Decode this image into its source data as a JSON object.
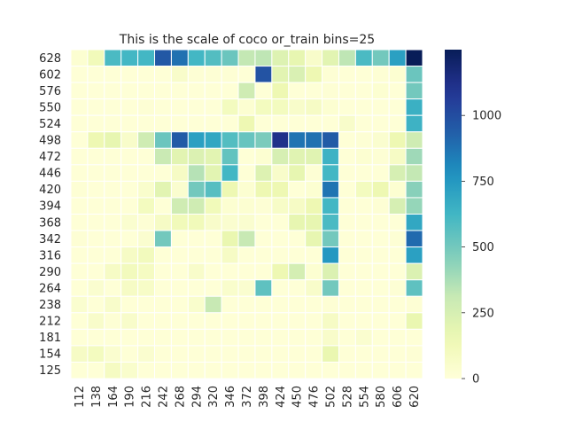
{
  "chart_data": {
    "type": "heatmap",
    "title": "This is the scale of coco or_train bins=25",
    "xlabel": "",
    "ylabel": "",
    "x": [
      "112",
      "138",
      "164",
      "190",
      "216",
      "242",
      "268",
      "294",
      "320",
      "346",
      "372",
      "398",
      "424",
      "450",
      "476",
      "502",
      "528",
      "554",
      "580",
      "606",
      "620"
    ],
    "y": [
      "628",
      "602",
      "576",
      "550",
      "524",
      "498",
      "472",
      "446",
      "420",
      "394",
      "368",
      "342",
      "316",
      "290",
      "264",
      "238",
      "212",
      "181",
      "154",
      "125"
    ],
    "values": [
      [
        30,
        120,
        600,
        620,
        620,
        960,
        880,
        620,
        580,
        520,
        320,
        330,
        220,
        180,
        60,
        200,
        330,
        600,
        500,
        720,
        1250
      ],
      [
        10,
        10,
        10,
        10,
        10,
        10,
        60,
        20,
        20,
        20,
        10,
        980,
        200,
        240,
        150,
        20,
        10,
        10,
        20,
        30,
        520
      ],
      [
        10,
        10,
        10,
        10,
        10,
        10,
        10,
        10,
        10,
        10,
        280,
        10,
        150,
        10,
        10,
        20,
        10,
        10,
        30,
        10,
        500
      ],
      [
        10,
        10,
        10,
        10,
        20,
        10,
        10,
        10,
        10,
        100,
        30,
        100,
        100,
        60,
        80,
        30,
        10,
        10,
        10,
        10,
        650
      ],
      [
        10,
        10,
        10,
        10,
        10,
        10,
        10,
        10,
        10,
        10,
        150,
        10,
        10,
        10,
        10,
        10,
        60,
        10,
        10,
        10,
        640
      ],
      [
        10,
        150,
        180,
        60,
        280,
        520,
        950,
        720,
        690,
        580,
        530,
        480,
        1120,
        870,
        880,
        950,
        10,
        20,
        40,
        150,
        280
      ],
      [
        10,
        10,
        10,
        10,
        10,
        300,
        200,
        230,
        200,
        540,
        10,
        30,
        250,
        210,
        210,
        640,
        10,
        30,
        20,
        80,
        400
      ],
      [
        10,
        10,
        10,
        10,
        10,
        10,
        80,
        350,
        200,
        620,
        10,
        220,
        60,
        180,
        20,
        620,
        10,
        10,
        10,
        250,
        320
      ],
      [
        20,
        10,
        10,
        10,
        50,
        200,
        40,
        500,
        570,
        150,
        30,
        150,
        150,
        10,
        30,
        870,
        10,
        100,
        150,
        30,
        450
      ],
      [
        10,
        10,
        10,
        10,
        100,
        10,
        280,
        280,
        120,
        30,
        30,
        20,
        70,
        80,
        150,
        620,
        10,
        10,
        20,
        250,
        420
      ],
      [
        10,
        10,
        10,
        40,
        20,
        80,
        120,
        120,
        60,
        40,
        40,
        10,
        10,
        180,
        180,
        600,
        10,
        10,
        10,
        10,
        690
      ],
      [
        20,
        10,
        10,
        10,
        40,
        500,
        10,
        10,
        10,
        170,
        310,
        10,
        10,
        10,
        180,
        500,
        10,
        10,
        10,
        20,
        900
      ],
      [
        10,
        10,
        10,
        80,
        110,
        10,
        10,
        10,
        10,
        80,
        10,
        10,
        10,
        10,
        10,
        750,
        10,
        10,
        10,
        10,
        720
      ],
      [
        10,
        10,
        80,
        110,
        90,
        10,
        10,
        60,
        10,
        10,
        10,
        10,
        150,
        260,
        30,
        230,
        10,
        10,
        10,
        10,
        230
      ],
      [
        10,
        40,
        10,
        80,
        70,
        10,
        10,
        10,
        10,
        50,
        40,
        550,
        10,
        10,
        60,
        500,
        10,
        10,
        10,
        20,
        550
      ],
      [
        40,
        10,
        60,
        10,
        10,
        10,
        10,
        50,
        310,
        10,
        10,
        10,
        10,
        10,
        10,
        20,
        10,
        10,
        10,
        10,
        20
      ],
      [
        10,
        60,
        20,
        60,
        10,
        10,
        10,
        10,
        10,
        10,
        10,
        10,
        10,
        10,
        10,
        80,
        10,
        10,
        10,
        10,
        170
      ],
      [
        10,
        10,
        10,
        10,
        10,
        10,
        10,
        10,
        10,
        10,
        10,
        10,
        10,
        10,
        10,
        60,
        10,
        40,
        10,
        10,
        10
      ],
      [
        80,
        100,
        40,
        10,
        40,
        10,
        10,
        10,
        10,
        10,
        10,
        10,
        10,
        10,
        10,
        170,
        10,
        10,
        10,
        10,
        20
      ],
      [
        10,
        10,
        90,
        50,
        10,
        10,
        10,
        10,
        10,
        10,
        10,
        10,
        10,
        10,
        10,
        10,
        10,
        10,
        10,
        10,
        10
      ]
    ],
    "vmin": 0,
    "vmax": 1250,
    "colormap": "YlGnBu",
    "colorbar_ticks": [
      0,
      250,
      500,
      750,
      1000
    ],
    "colorbar_ticks_label": [
      "0",
      "250",
      "500",
      "750",
      "1000"
    ],
    "cell_border_color": "#ffffff",
    "grid": false
  }
}
